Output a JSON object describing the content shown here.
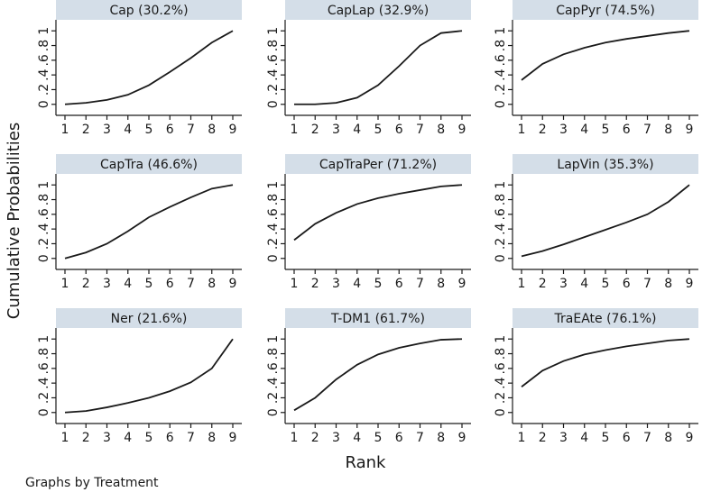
{
  "ylabel": "Cumulative Probabilities",
  "xlabel": "Rank",
  "note": "Graphs by Treatment",
  "chart_data": [
    {
      "type": "line",
      "title": "Cap (30.2%)",
      "x": [
        1,
        2,
        3,
        4,
        5,
        6,
        7,
        8,
        9
      ],
      "values": [
        0,
        0.02,
        0.06,
        0.13,
        0.26,
        0.44,
        0.63,
        0.84,
        1
      ],
      "color": "#1a1a1a",
      "xlim": [
        0.57,
        9.43
      ],
      "ylim": [
        -0.15,
        1.15
      ],
      "xticks": [
        1,
        2,
        3,
        4,
        5,
        6,
        7,
        8,
        9
      ],
      "yticks": [
        0,
        {
          "value": 0.2,
          "label": ".2"
        },
        {
          "value": 0.4,
          "label": ".4"
        },
        {
          "value": 0.6,
          "label": ".6"
        },
        {
          "value": 0.8,
          "label": ".8"
        },
        1
      ]
    },
    {
      "type": "line",
      "title": "CapLap (32.9%)",
      "x": [
        1,
        2,
        3,
        4,
        5,
        6,
        7,
        8,
        9
      ],
      "values": [
        0,
        0,
        0.02,
        0.09,
        0.26,
        0.52,
        0.8,
        0.97,
        1
      ],
      "color": "#1a1a1a",
      "xlim": [
        0.57,
        9.43
      ],
      "ylim": [
        -0.15,
        1.15
      ],
      "xticks": [
        1,
        2,
        3,
        4,
        5,
        6,
        7,
        8,
        9
      ],
      "yticks": [
        0,
        {
          "value": 0.2,
          "label": ".2"
        },
        {
          "value": 0.4,
          "label": ".4"
        },
        {
          "value": 0.6,
          "label": ".6"
        },
        {
          "value": 0.8,
          "label": ".8"
        },
        1
      ]
    },
    {
      "type": "line",
      "title": "CapPyr (74.5%)",
      "x": [
        1,
        2,
        3,
        4,
        5,
        6,
        7,
        8,
        9
      ],
      "values": [
        0.33,
        0.55,
        0.68,
        0.77,
        0.84,
        0.89,
        0.93,
        0.97,
        1
      ],
      "color": "#1a1a1a",
      "xlim": [
        0.57,
        9.43
      ],
      "ylim": [
        -0.15,
        1.15
      ],
      "xticks": [
        1,
        2,
        3,
        4,
        5,
        6,
        7,
        8,
        9
      ],
      "yticks": [
        0,
        {
          "value": 0.2,
          "label": ".2"
        },
        {
          "value": 0.4,
          "label": ".4"
        },
        {
          "value": 0.6,
          "label": ".6"
        },
        {
          "value": 0.8,
          "label": ".8"
        },
        1
      ]
    },
    {
      "type": "line",
      "title": "CapTra (46.6%)",
      "x": [
        1,
        2,
        3,
        4,
        5,
        6,
        7,
        8,
        9
      ],
      "values": [
        0,
        0.08,
        0.2,
        0.37,
        0.56,
        0.7,
        0.83,
        0.95,
        1
      ],
      "color": "#1a1a1a",
      "xlim": [
        0.57,
        9.43
      ],
      "ylim": [
        -0.15,
        1.15
      ],
      "xticks": [
        1,
        2,
        3,
        4,
        5,
        6,
        7,
        8,
        9
      ],
      "yticks": [
        0,
        {
          "value": 0.2,
          "label": ".2"
        },
        {
          "value": 0.4,
          "label": ".4"
        },
        {
          "value": 0.6,
          "label": ".6"
        },
        {
          "value": 0.8,
          "label": ".8"
        },
        1
      ]
    },
    {
      "type": "line",
      "title": "CapTraPer (71.2%)",
      "x": [
        1,
        2,
        3,
        4,
        5,
        6,
        7,
        8,
        9
      ],
      "values": [
        0.25,
        0.47,
        0.62,
        0.74,
        0.82,
        0.88,
        0.93,
        0.98,
        1
      ],
      "color": "#1a1a1a",
      "xlim": [
        0.57,
        9.43
      ],
      "ylim": [
        -0.15,
        1.15
      ],
      "xticks": [
        1,
        2,
        3,
        4,
        5,
        6,
        7,
        8,
        9
      ],
      "yticks": [
        0,
        {
          "value": 0.2,
          "label": ".2"
        },
        {
          "value": 0.4,
          "label": ".4"
        },
        {
          "value": 0.6,
          "label": ".6"
        },
        {
          "value": 0.8,
          "label": ".8"
        },
        1
      ]
    },
    {
      "type": "line",
      "title": "LapVin (35.3%)",
      "x": [
        1,
        2,
        3,
        4,
        5,
        6,
        7,
        8,
        9
      ],
      "values": [
        0.03,
        0.1,
        0.19,
        0.29,
        0.39,
        0.49,
        0.6,
        0.77,
        1
      ],
      "color": "#1a1a1a",
      "xlim": [
        0.57,
        9.43
      ],
      "ylim": [
        -0.15,
        1.15
      ],
      "xticks": [
        1,
        2,
        3,
        4,
        5,
        6,
        7,
        8,
        9
      ],
      "yticks": [
        0,
        {
          "value": 0.2,
          "label": ".2"
        },
        {
          "value": 0.4,
          "label": ".4"
        },
        {
          "value": 0.6,
          "label": ".6"
        },
        {
          "value": 0.8,
          "label": ".8"
        },
        1
      ]
    },
    {
      "type": "line",
      "title": "Ner (21.6%)",
      "x": [
        1,
        2,
        3,
        4,
        5,
        6,
        7,
        8,
        9
      ],
      "values": [
        0,
        0.02,
        0.07,
        0.13,
        0.2,
        0.29,
        0.41,
        0.6,
        1
      ],
      "color": "#1a1a1a",
      "xlim": [
        0.57,
        9.43
      ],
      "ylim": [
        -0.15,
        1.15
      ],
      "xticks": [
        1,
        2,
        3,
        4,
        5,
        6,
        7,
        8,
        9
      ],
      "yticks": [
        0,
        {
          "value": 0.2,
          "label": ".2"
        },
        {
          "value": 0.4,
          "label": ".4"
        },
        {
          "value": 0.6,
          "label": ".6"
        },
        {
          "value": 0.8,
          "label": ".8"
        },
        1
      ]
    },
    {
      "type": "line",
      "title": "T-DM1 (61.7%)",
      "x": [
        1,
        2,
        3,
        4,
        5,
        6,
        7,
        8,
        9
      ],
      "values": [
        0.03,
        0.2,
        0.45,
        0.65,
        0.79,
        0.88,
        0.94,
        0.99,
        1
      ],
      "color": "#1a1a1a",
      "xlim": [
        0.57,
        9.43
      ],
      "ylim": [
        -0.15,
        1.15
      ],
      "xticks": [
        1,
        2,
        3,
        4,
        5,
        6,
        7,
        8,
        9
      ],
      "yticks": [
        0,
        {
          "value": 0.2,
          "label": ".2"
        },
        {
          "value": 0.4,
          "label": ".4"
        },
        {
          "value": 0.6,
          "label": ".6"
        },
        {
          "value": 0.8,
          "label": ".8"
        },
        1
      ]
    },
    {
      "type": "line",
      "title": "TraEAte (76.1%)",
      "x": [
        1,
        2,
        3,
        4,
        5,
        6,
        7,
        8,
        9
      ],
      "values": [
        0.35,
        0.57,
        0.7,
        0.79,
        0.85,
        0.9,
        0.94,
        0.98,
        1
      ],
      "color": "#1a1a1a",
      "xlim": [
        0.57,
        9.43
      ],
      "ylim": [
        -0.15,
        1.15
      ],
      "xticks": [
        1,
        2,
        3,
        4,
        5,
        6,
        7,
        8,
        9
      ],
      "yticks": [
        0,
        {
          "value": 0.2,
          "label": ".2"
        },
        {
          "value": 0.4,
          "label": ".4"
        },
        {
          "value": 0.6,
          "label": ".6"
        },
        {
          "value": 0.8,
          "label": ".8"
        },
        1
      ]
    }
  ]
}
